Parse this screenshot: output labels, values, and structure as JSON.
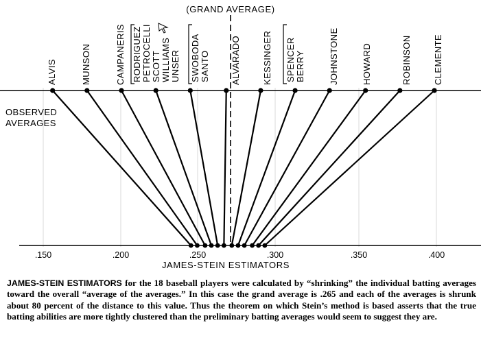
{
  "header": {
    "grand_average_label": "(GRAND AVERAGE)"
  },
  "observed_label_line1": "OBSERVED",
  "observed_label_line2": "AVERAGES",
  "axis_title": "JAMES-STEIN ESTIMATORS",
  "axis_ticks": [
    ".150",
    ".200",
    ".250",
    ".300",
    ".350",
    ".400"
  ],
  "players": [
    {
      "name": "ALVIS",
      "observed": 0.156,
      "estimator": 0.244
    },
    {
      "name": "MUNSON",
      "observed": 0.178,
      "estimator": 0.248
    },
    {
      "name": "CAMPANERIS",
      "observed": 0.2,
      "estimator": 0.253
    },
    {
      "name": "RODRIGUEZ",
      "observed": 0.222,
      "estimator": 0.257
    },
    {
      "name": "PETROCELLI",
      "observed": 0.222,
      "estimator": 0.257
    },
    {
      "name": "SCOTT",
      "observed": 0.222,
      "estimator": 0.257
    },
    {
      "name": "WILLIAMS",
      "observed": 0.222,
      "estimator": 0.257
    },
    {
      "name": "UNSER",
      "observed": 0.222,
      "estimator": 0.257
    },
    {
      "name": "SWOBODA",
      "observed": 0.244,
      "estimator": 0.261
    },
    {
      "name": "SANTO",
      "observed": 0.244,
      "estimator": 0.261
    },
    {
      "name": "ALVARADO",
      "observed": 0.267,
      "estimator": 0.265
    },
    {
      "name": "KESSINGER",
      "observed": 0.289,
      "estimator": 0.27
    },
    {
      "name": "SPENCER",
      "observed": 0.311,
      "estimator": 0.274
    },
    {
      "name": "BERRY",
      "observed": 0.311,
      "estimator": 0.274
    },
    {
      "name": "JOHNSTONE",
      "observed": 0.333,
      "estimator": 0.278
    },
    {
      "name": "HOWARD",
      "observed": 0.356,
      "estimator": 0.283
    },
    {
      "name": "ROBINSON",
      "observed": 0.378,
      "estimator": 0.287
    },
    {
      "name": "CLEMENTE",
      "observed": 0.4,
      "estimator": 0.291
    }
  ],
  "grand_average": 0.265,
  "caption": {
    "lead": "JAMES-STEIN ESTIMATORS",
    "body": " for the 18 baseball players were calculated by “shrinking” the individual batting averages toward the overall “average of the averages.” In this case the grand average is .265 and each of the averages is shrunk about 80 percent of the distance to this value. Thus the theorem on which Stein’s method is based asserts that the true batting abilities are more tightly clustered than the preliminary batting averages would seem to suggest they are."
  }
}
